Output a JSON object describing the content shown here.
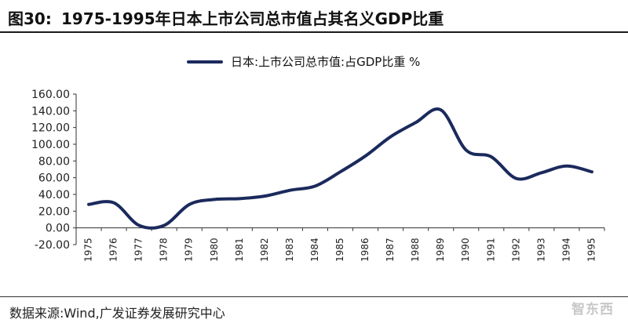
{
  "header": {
    "figure_label": "图30:",
    "title": "1975-1995年日本上市公司总市值占其名义GDP比重"
  },
  "footer": {
    "source": "数据来源:Wind,广发证券发展研究中心",
    "watermark": "智东西"
  },
  "colors": {
    "series": "#1b2a5c",
    "axis": "#333333"
  },
  "chart_data": {
    "type": "line",
    "legend_position": "top-center",
    "grid": false,
    "ylim": [
      -20,
      160
    ],
    "yticks": [
      "160.00",
      "140.00",
      "120.00",
      "100.00",
      "80.00",
      "60.00",
      "40.00",
      "20.00",
      "0.00",
      "-20.00"
    ],
    "x": [
      "1975",
      "1976",
      "1977",
      "1978",
      "1979",
      "1980",
      "1981",
      "1982",
      "1983",
      "1984",
      "1985",
      "1986",
      "1987",
      "1988",
      "1989",
      "1990",
      "1991",
      "1992",
      "1993",
      "1994",
      "1995"
    ],
    "series": [
      {
        "name": "日本:上市公司总市值:占GDP比重 %",
        "values": [
          28,
          30,
          3,
          3,
          28,
          34,
          35,
          38,
          45,
          50,
          67,
          86,
          109,
          126,
          141,
          93,
          85,
          59,
          66,
          74,
          67
        ]
      }
    ]
  }
}
